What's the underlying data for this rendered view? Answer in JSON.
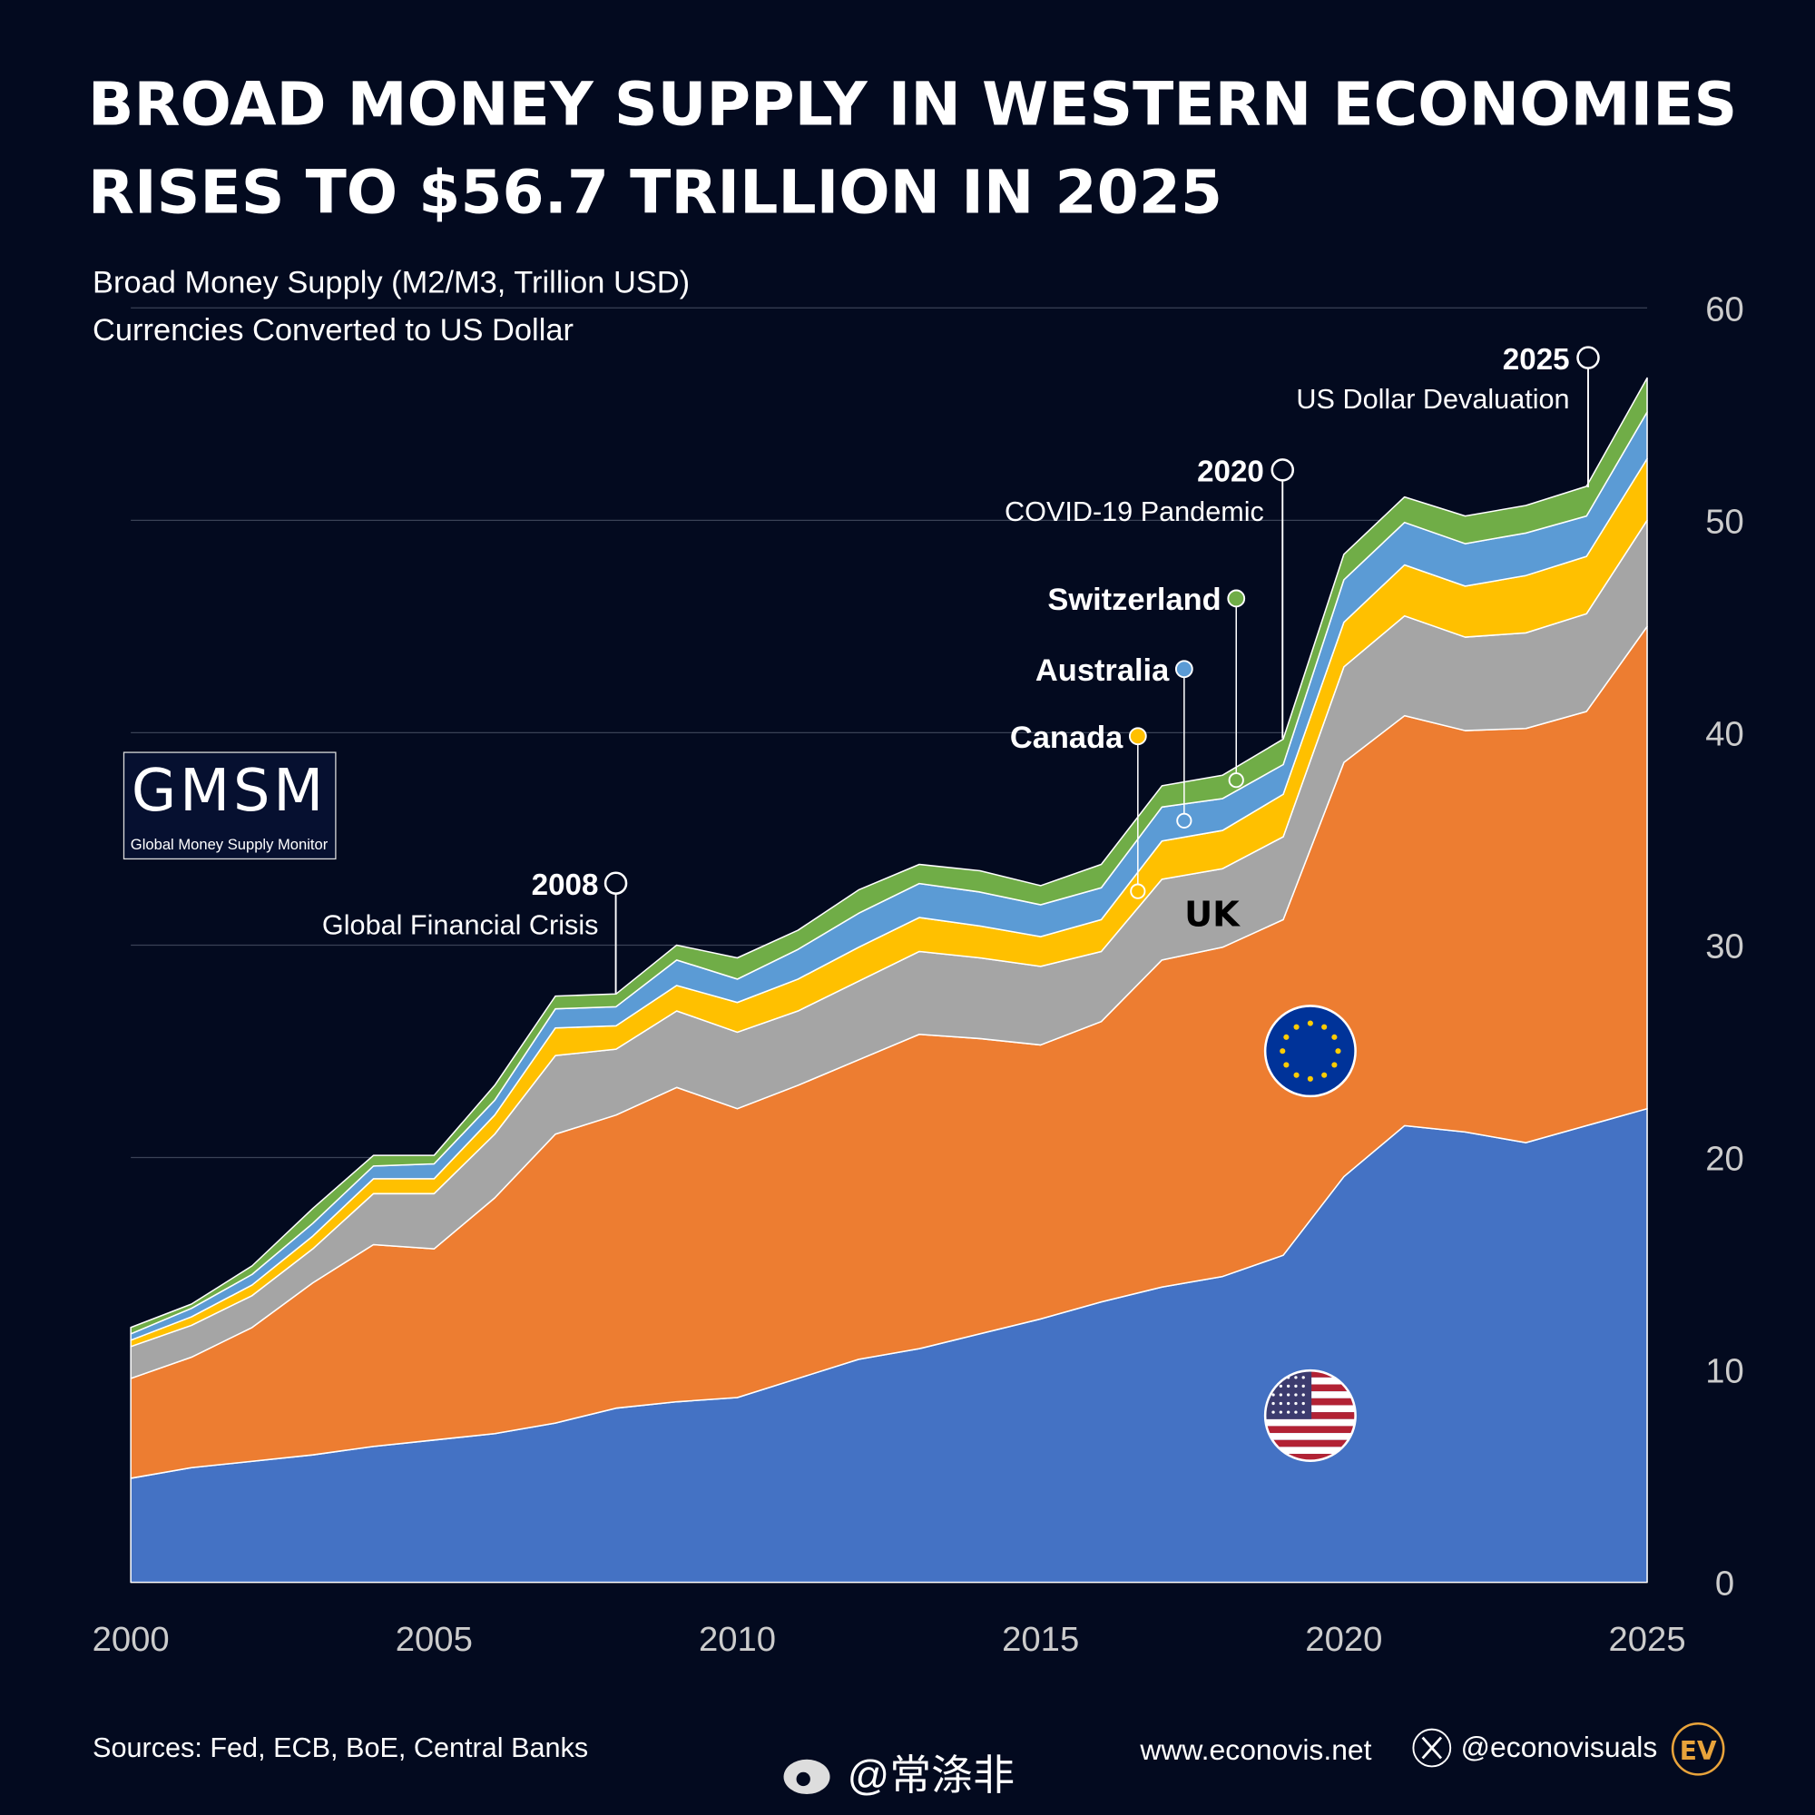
{
  "colors": {
    "background": "#030a1f",
    "US": "#4472c4",
    "Euro Area": "#ed7d31",
    "UK": "#a5a5a5",
    "Canada": "#ffc000",
    "Australia": "#5b9bd5",
    "Switzerland": "#70ad47"
  },
  "chart_data": {
    "type": "area",
    "stacked": true,
    "title": "BROAD MONEY SUPPLY IN WESTERN ECONOMIES",
    "title_line2": "RISES TO $56.7 TRILLION IN 2025",
    "subtitle": "Broad Money Supply (M2/M3, Trillion USD)",
    "subtitle2": "Currencies Converted to US Dollar",
    "x": [
      2000,
      2001,
      2002,
      2003,
      2004,
      2005,
      2006,
      2007,
      2008,
      2009,
      2010,
      2011,
      2012,
      2013,
      2014,
      2015,
      2016,
      2017,
      2018,
      2019,
      2020,
      2021,
      2022,
      2023,
      2024,
      2025
    ],
    "x_ticks": [
      "2000",
      "2005",
      "2010",
      "2015",
      "2020",
      "2025"
    ],
    "y_ticks": [
      "0",
      "10",
      "20",
      "30",
      "40",
      "50",
      "60"
    ],
    "ylim": [
      0,
      60
    ],
    "grid": true,
    "y_axis_side": "right",
    "series": [
      {
        "key": "US",
        "values": [
          4.9,
          5.4,
          5.7,
          6.0,
          6.4,
          6.7,
          7.0,
          7.5,
          8.2,
          8.5,
          8.7,
          9.6,
          10.5,
          11.0,
          11.7,
          12.4,
          13.2,
          13.9,
          14.4,
          15.4,
          19.1,
          21.5,
          21.2,
          20.7,
          21.5,
          22.3
        ]
      },
      {
        "key": "Euro Area",
        "values": [
          4.7,
          5.2,
          6.3,
          8.1,
          9.5,
          9.0,
          11.1,
          13.6,
          13.8,
          14.8,
          13.6,
          13.8,
          14.1,
          14.8,
          13.9,
          12.9,
          13.2,
          15.4,
          15.5,
          15.8,
          19.5,
          19.3,
          18.9,
          19.5,
          19.5,
          22.7
        ]
      },
      {
        "key": "UK",
        "name": "UK",
        "values": [
          1.5,
          1.5,
          1.5,
          1.6,
          2.4,
          2.6,
          3.0,
          3.7,
          3.1,
          3.6,
          3.6,
          3.5,
          3.7,
          3.9,
          3.8,
          3.7,
          3.3,
          3.8,
          3.7,
          3.9,
          4.5,
          4.7,
          4.4,
          4.5,
          4.6,
          5.0
        ]
      },
      {
        "key": "Canada",
        "name": "Canada",
        "values": [
          0.3,
          0.4,
          0.5,
          0.6,
          0.7,
          0.7,
          0.9,
          1.3,
          1.1,
          1.2,
          1.4,
          1.5,
          1.6,
          1.6,
          1.5,
          1.4,
          1.5,
          1.8,
          1.8,
          2.0,
          2.1,
          2.4,
          2.4,
          2.7,
          2.7,
          2.9
        ]
      },
      {
        "key": "Australia",
        "name": "Australia",
        "values": [
          0.3,
          0.4,
          0.5,
          0.6,
          0.6,
          0.7,
          0.7,
          0.9,
          0.9,
          1.2,
          1.1,
          1.4,
          1.6,
          1.6,
          1.6,
          1.5,
          1.5,
          1.6,
          1.5,
          1.4,
          2.0,
          2.0,
          2.0,
          2.0,
          1.9,
          2.2
        ]
      },
      {
        "key": "Switzerland",
        "name": "Switzerland",
        "values": [
          0.3,
          0.2,
          0.4,
          0.7,
          0.5,
          0.4,
          0.7,
          0.6,
          0.6,
          0.7,
          1.0,
          0.9,
          1.1,
          0.9,
          1.0,
          0.9,
          1.1,
          1.0,
          1.1,
          1.2,
          1.2,
          1.2,
          1.3,
          1.3,
          1.4,
          1.6
        ]
      }
    ],
    "annotations": [
      {
        "year": "2008",
        "text": "Global Financial Crisis"
      },
      {
        "year": "2020",
        "text": "COVID-19 Pandemic"
      },
      {
        "year": "2025",
        "text": "US Dollar Devaluation"
      }
    ]
  },
  "logo": {
    "title": "GMSM",
    "subtitle": "Global Money Supply Monitor"
  },
  "footer": {
    "sources": "Sources: Fed, ECB, BoE, Central Banks",
    "weibo": "@常涤非",
    "website": "www.econovis.net",
    "x_handle": "@econovisuals",
    "ev_logo": "EV"
  }
}
